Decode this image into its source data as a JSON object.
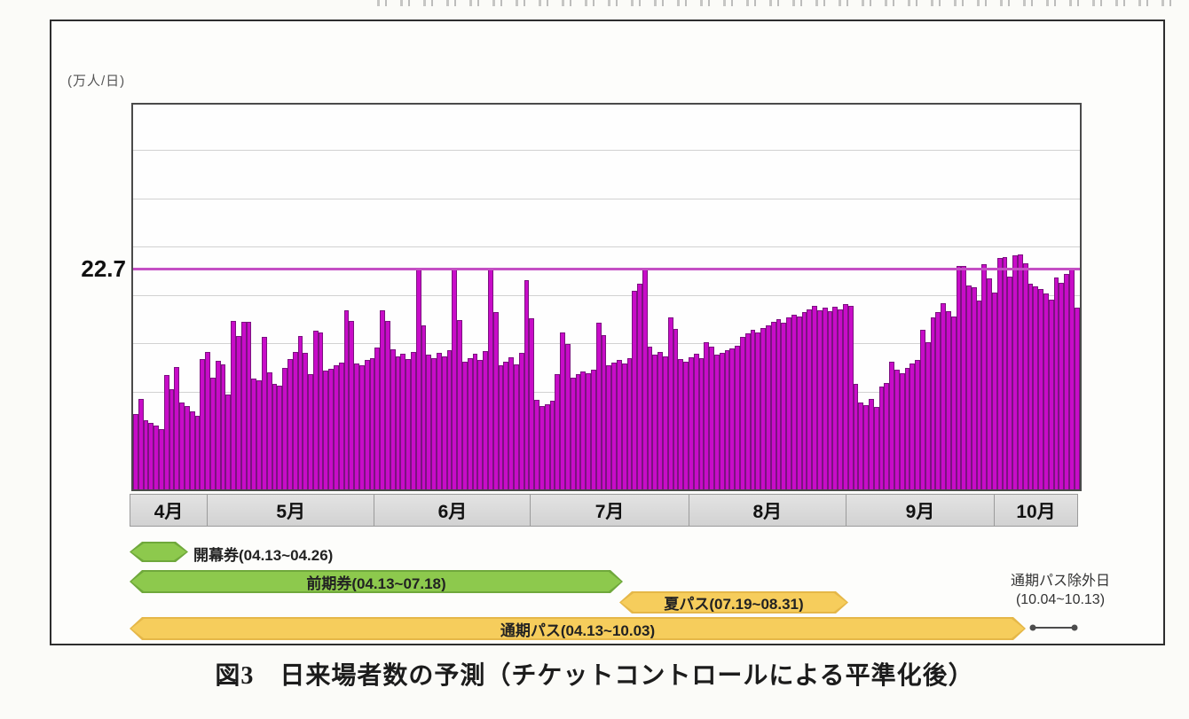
{
  "page": {
    "unit_label": "(万人/日)",
    "caption": "図3　日来場者数の予測（チケットコントロールによる平準化後）"
  },
  "chart_data": {
    "type": "bar",
    "title": "日来場者数の予測（チケットコントロールによる平準化後）",
    "ylabel": "(万人/日)",
    "ylim": [
      0,
      39.8
    ],
    "gridline_values": [
      5,
      10,
      15,
      20,
      25,
      30,
      35
    ],
    "grid": "horizontal",
    "bar_color": "#c80cc8",
    "bar_border_color": "#7c1280",
    "reference_line": {
      "value": 22.7,
      "label": "22.7",
      "color": "#c44fc4"
    },
    "x_months": [
      {
        "label": "4月"
      },
      {
        "label": "5月"
      },
      {
        "label": "6月"
      },
      {
        "label": "7月"
      },
      {
        "label": "8月"
      },
      {
        "label": "9月"
      },
      {
        "label": "10月"
      }
    ],
    "values": [
      7.8,
      9.4,
      7.2,
      6.9,
      6.6,
      6.2,
      11.8,
      10.4,
      12.7,
      9.0,
      8.6,
      8.1,
      7.6,
      13.5,
      14.2,
      11.6,
      13.3,
      12.9,
      9.8,
      17.4,
      15.9,
      17.3,
      17.3,
      11.5,
      11.3,
      15.8,
      12.1,
      10.9,
      10.7,
      12.6,
      13.5,
      14.2,
      15.9,
      14.1,
      11.9,
      16.4,
      16.2,
      12.3,
      12.5,
      12.8,
      13.1,
      18.5,
      17.4,
      13.0,
      12.8,
      13.4,
      13.6,
      14.7,
      18.5,
      17.4,
      14.5,
      13.8,
      14.0,
      13.5,
      14.2,
      22.7,
      17.0,
      13.9,
      13.6,
      14.1,
      13.8,
      14.4,
      22.7,
      17.5,
      13.2,
      13.6,
      14.0,
      13.4,
      14.3,
      22.7,
      18.3,
      12.8,
      13.2,
      13.7,
      12.9,
      14.1,
      21.6,
      17.7,
      9.3,
      8.6,
      8.8,
      9.2,
      11.9,
      16.2,
      15.0,
      11.6,
      11.9,
      12.2,
      12.0,
      12.4,
      17.2,
      16.0,
      12.8,
      13.1,
      13.4,
      13.0,
      13.6,
      20.5,
      21.3,
      22.7,
      14.8,
      13.9,
      14.2,
      13.8,
      17.8,
      16.6,
      13.5,
      13.2,
      13.7,
      14.0,
      13.6,
      15.2,
      14.8,
      13.9,
      14.1,
      14.4,
      14.6,
      14.9,
      15.8,
      16.1,
      16.5,
      16.2,
      16.7,
      17.0,
      17.3,
      17.6,
      17.2,
      17.8,
      18.1,
      17.9,
      18.3,
      18.6,
      19.0,
      18.5,
      18.8,
      18.4,
      18.9,
      18.6,
      19.2,
      19.0,
      10.9,
      9.0,
      8.7,
      9.4,
      8.5,
      10.6,
      11.0,
      13.2,
      12.4,
      12.0,
      12.6,
      13.0,
      13.4,
      16.5,
      15.2,
      17.8,
      18.3,
      19.3,
      18.4,
      17.9,
      23.1,
      23.1,
      21.1,
      20.9,
      19.5,
      23.3,
      21.8,
      20.4,
      23.9,
      24.0,
      22.0,
      24.2,
      24.3,
      23.4,
      21.3,
      21.0,
      20.7,
      20.3,
      19.6,
      21.9,
      21.4,
      22.3,
      22.7,
      18.8
    ]
  },
  "bands": [
    {
      "id": "kaimaku",
      "label": "開幕券(04.13~04.26)",
      "fill": "#8dc94d",
      "border": "#6fa83b",
      "label_inside": false
    },
    {
      "id": "zenki",
      "label": "前期券(04.13~07.18)",
      "fill": "#8dc94d",
      "border": "#6fa83b",
      "label_inside": true
    },
    {
      "id": "natsu",
      "label": "夏パス(07.19~08.31)",
      "fill": "#f6cd5c",
      "border": "#e5b748",
      "label_inside": true
    },
    {
      "id": "tsuki",
      "label": "通期パス(04.13~10.03)",
      "fill": "#f6cd5c",
      "border": "#e5b748",
      "label_inside": true
    }
  ],
  "exclusion": {
    "line1": "通期パス除外日",
    "line2": "(10.04~10.13)"
  }
}
